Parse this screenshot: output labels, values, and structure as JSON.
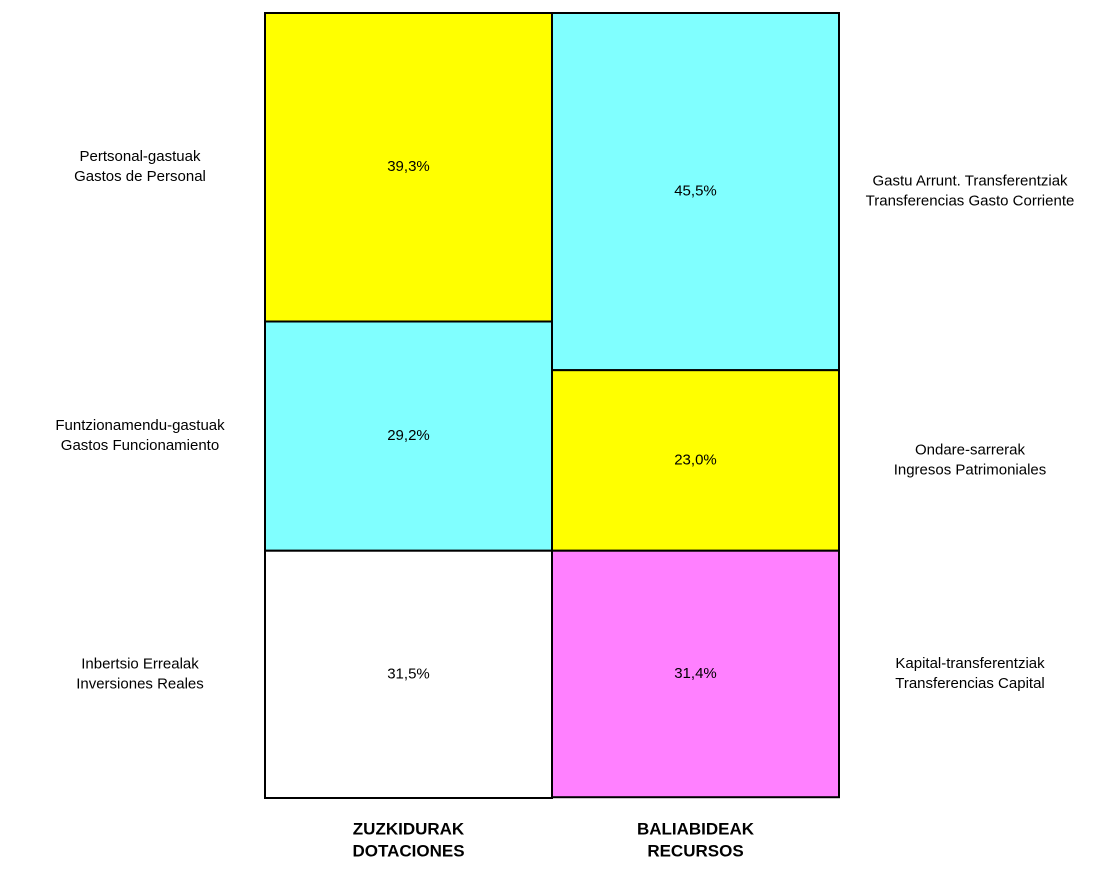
{
  "chart_data": {
    "type": "stacked_column",
    "ylim": [
      0,
      100
    ],
    "columns": [
      {
        "label": [
          "ZUZKIDURAK",
          "DOTACIONES"
        ],
        "segments": [
          {
            "name": [
              "Pertsonal-gastuak",
              "Gastos de Personal"
            ],
            "value": 39.3,
            "value_label": "39,3%",
            "color": "#ffff00"
          },
          {
            "name": [
              "Funtzionamendu-gastuak",
              "Gastos Funcionamiento"
            ],
            "value": 29.2,
            "value_label": "29,2%",
            "color": "#80ffff"
          },
          {
            "name": [
              "Inbertsio Errealak",
              "Inversiones Reales"
            ],
            "value": 31.5,
            "value_label": "31,5%",
            "color": "#ffffff"
          }
        ]
      },
      {
        "label": [
          "BALIABIDEAK",
          "RECURSOS"
        ],
        "segments": [
          {
            "name": [
              "Gastu Arrunt. Transferentziak",
              "Transferencias Gasto Corriente"
            ],
            "value": 45.5,
            "value_label": "45,5%",
            "color": "#80ffff"
          },
          {
            "name": [
              "Ondare-sarrerak",
              "Ingresos Patrimoniales"
            ],
            "value": 23.0,
            "value_label": "23,0%",
            "color": "#ffff00"
          },
          {
            "name": [
              "Kapital-transferentziak",
              "Transferencias Capital"
            ],
            "value": 31.4,
            "value_label": "31,4%",
            "color": "#ff80ff"
          }
        ]
      }
    ]
  }
}
